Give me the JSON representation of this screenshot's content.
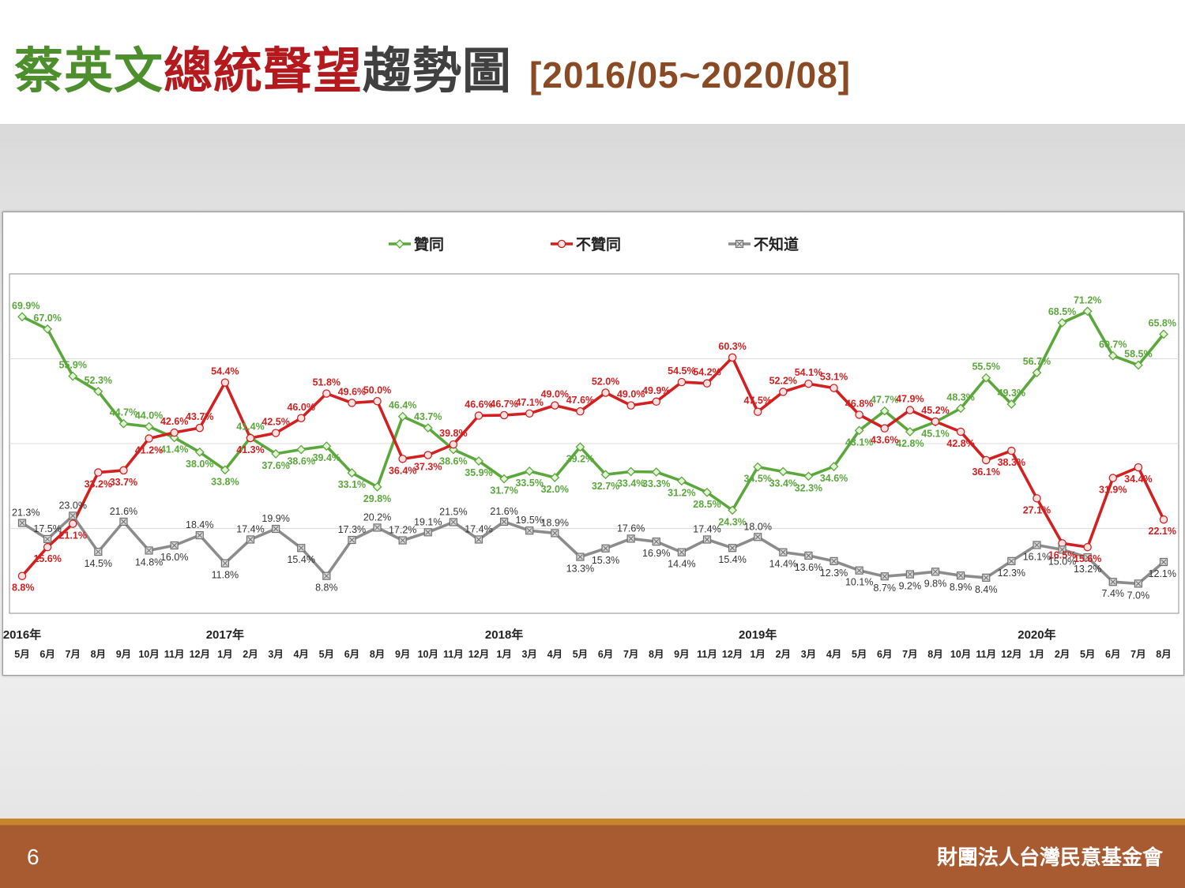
{
  "title": {
    "part1": "蔡英文",
    "part2": "總統聲望",
    "part3": "趨勢圖",
    "range": "[2016/05~2020/08]"
  },
  "footer": {
    "page_number": "6",
    "organization": "財團法人台灣民意基金會"
  },
  "colors": {
    "approve": "#5aa83c",
    "disapprove": "#d21f1f",
    "unknown": "#8c8c8c",
    "title_green": "#4d8f2d",
    "title_red": "#b3191d",
    "title_gray": "#404040",
    "title_brown": "#8a4a24"
  },
  "chart_data": {
    "type": "line",
    "legend_position": "top",
    "year_labels": [
      {
        "index": 0,
        "label": "2016年"
      },
      {
        "index": 8,
        "label": "2017年"
      },
      {
        "index": 19,
        "label": "2018年"
      },
      {
        "index": 29,
        "label": "2019年"
      },
      {
        "index": 40,
        "label": "2020年"
      }
    ],
    "categories": [
      "5月",
      "6月",
      "7月",
      "8月",
      "9月",
      "10月",
      "11月",
      "12月",
      "1月",
      "2月",
      "3月",
      "4月",
      "5月",
      "6月",
      "8月",
      "9月",
      "10月",
      "11月",
      "12月",
      "1月",
      "3月",
      "4月",
      "5月",
      "6月",
      "7月",
      "8月",
      "9月",
      "11月",
      "12月",
      "1月",
      "2月",
      "3月",
      "4月",
      "5月",
      "6月",
      "7月",
      "8月",
      "10月",
      "11月",
      "12月",
      "1月",
      "2月",
      "5月",
      "6月",
      "7月",
      "8月"
    ],
    "series": [
      {
        "name": "贊同",
        "color": "#5aa83c",
        "values": [
          69.9,
          67.0,
          55.9,
          52.3,
          44.7,
          44.0,
          41.4,
          38.0,
          33.8,
          41.4,
          37.6,
          38.6,
          39.4,
          33.1,
          29.8,
          46.4,
          43.7,
          38.6,
          35.9,
          31.7,
          33.5,
          32.0,
          39.2,
          32.7,
          33.4,
          33.3,
          31.2,
          28.5,
          24.3,
          34.5,
          33.4,
          32.3,
          34.6,
          43.1,
          47.7,
          42.8,
          45.1,
          48.3,
          55.5,
          49.3,
          56.7,
          68.5,
          71.2,
          60.7,
          58.5,
          65.8
        ],
        "labels": [
          "69.9%",
          "67.0%",
          "55.9%",
          "52.3%",
          "44.7%",
          "44.0%",
          "41.4%",
          "38.0%",
          "33.8%",
          "41.4%",
          "37.6%",
          "38.6%",
          "39.4%",
          "33.1%",
          "29.8%",
          "46.4%",
          "43.7%",
          "38.6%",
          "35.9%",
          "31.7%",
          "33.5%",
          "32.0%",
          "39.2%",
          "32.7%",
          "33.4%",
          "33.3%",
          "31.2%",
          "28.5%",
          "24.3%",
          "34.5%",
          "33.4%",
          "32.3%",
          "34.6%",
          "43.1%",
          "47.7%",
          "42.8%",
          "45.1%",
          "48.3%",
          "55.5%",
          "49.3%",
          "56.7%",
          "68.5%",
          "71.2%",
          "60.7%",
          "58.5%",
          "65.8%"
        ]
      },
      {
        "name": "不贊同",
        "color": "#d21f1f",
        "values": [
          8.8,
          15.6,
          21.1,
          33.2,
          33.7,
          41.2,
          42.6,
          43.7,
          54.4,
          41.3,
          42.5,
          46.0,
          51.8,
          49.6,
          50.0,
          36.4,
          37.3,
          39.8,
          46.6,
          46.7,
          47.1,
          49.0,
          47.6,
          52.0,
          49.0,
          49.9,
          54.5,
          54.2,
          60.3,
          47.5,
          52.2,
          54.1,
          53.1,
          46.8,
          43.6,
          47.9,
          45.2,
          42.8,
          36.1,
          38.3,
          27.1,
          16.5,
          15.6,
          31.9,
          34.4,
          22.1
        ],
        "labels": [
          "8.8%",
          "15.6%",
          "21.1%",
          "33.2%",
          "33.7%",
          "41.2%",
          "42.6%",
          "43.7%",
          "54.4%",
          "41.3%",
          "42.5%",
          "46.0%",
          "51.8%",
          "49.6%",
          "50.0%",
          "36.4%",
          "37.3%",
          "39.8%",
          "46.6%",
          "46.7%",
          "47.1%",
          "49.0%",
          "47.6%",
          "52.0%",
          "49.0%",
          "49.9%",
          "54.5%",
          "54.2%",
          "60.3%",
          "47.5%",
          "52.2%",
          "54.1%",
          "53.1%",
          "46.8%",
          "43.6%",
          "47.9%",
          "45.2%",
          "42.8%",
          "36.1%",
          "38.3%",
          "27.1%",
          "16.5%",
          "15.6%",
          "31.9%",
          "34.4%",
          "22.1%"
        ]
      },
      {
        "name": "不知道",
        "color": "#8c8c8c",
        "values": [
          21.3,
          17.5,
          23.0,
          14.5,
          21.6,
          14.8,
          16.0,
          18.4,
          11.8,
          17.4,
          19.9,
          15.4,
          8.8,
          17.3,
          20.2,
          17.2,
          19.1,
          21.5,
          17.4,
          21.6,
          19.5,
          18.9,
          13.3,
          15.3,
          17.6,
          16.9,
          14.4,
          17.4,
          15.4,
          18.0,
          14.4,
          13.6,
          12.3,
          10.1,
          8.7,
          9.2,
          9.8,
          8.9,
          8.4,
          12.3,
          16.1,
          15.0,
          13.2,
          7.4,
          7.0,
          12.1
        ],
        "labels": [
          "21.3%",
          "17.5%",
          "23.0%",
          "14.5%",
          "21.6%",
          "14.8%",
          "16.0%",
          "18.4%",
          "11.8%",
          "17.4%",
          "19.9%",
          "15.4%",
          "8.8%",
          "17.3%",
          "20.2%",
          "17.2%",
          "19.1%",
          "21.5%",
          "17.4%",
          "21.6%",
          "19.5%",
          "18.9%",
          "13.3%",
          "15.3%",
          "17.6%",
          "16.9%",
          "14.4%",
          "17.4%",
          "15.4%",
          "18.0%",
          "14.4%",
          "13.6%",
          "12.3%",
          "10.1%",
          "8.7%",
          "9.2%",
          "9.8%",
          "8.9%",
          "8.4%",
          "12.3%",
          "16.1%",
          "15.0%",
          "13.2%",
          "7.4%",
          "7.0%",
          "12.1%"
        ]
      }
    ],
    "ylim": [
      0,
      80
    ],
    "grid": true
  }
}
